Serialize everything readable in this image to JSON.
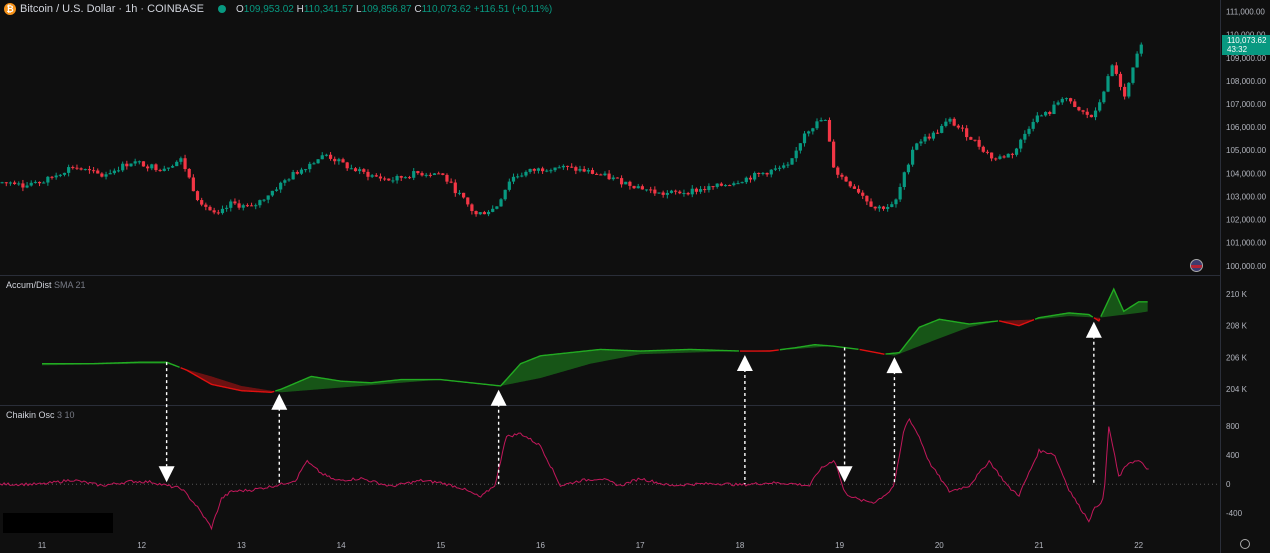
{
  "legend": {
    "symbol": "Bitcoin / U.S. Dollar · 1h · COINBASE",
    "open_label": "O",
    "open": "109,953.02",
    "high_label": "H",
    "high": "110,341.57",
    "low_label": "L",
    "low": "109,856.87",
    "close_label": "C",
    "close": "110,073.62",
    "change": "+116.51 (+0.11%)"
  },
  "last_price": {
    "price": "110,073.62",
    "countdown": "43:32"
  },
  "indicators": {
    "ad_name": "Accum/Dist",
    "ad_params": "SMA 21",
    "chaikin_name": "Chaikin Osc",
    "chaikin_params": "3 10"
  },
  "colors": {
    "up": "#089981",
    "down": "#f23645",
    "ad_line_up": "#22ab22",
    "ad_line_down": "#e01010",
    "chaikin": "#c2185b",
    "arrow": "#ffffff"
  },
  "chart_data": [
    {
      "type": "candlestick",
      "title": "Bitcoin / U.S. Dollar · 1h · COINBASE",
      "x_ticks": [
        "11",
        "12",
        "13",
        "14",
        "15",
        "16",
        "17",
        "18",
        "19",
        "20",
        "21",
        "22"
      ],
      "y_ticks": [
        "100,000.00",
        "101,000.00",
        "102,000.00",
        "103,000.00",
        "104,000.00",
        "105,000.00",
        "106,000.00",
        "107,000.00",
        "108,000.00",
        "109,000.00",
        "110,000.00",
        "111,000.00"
      ],
      "ylim": [
        99600,
        111500
      ],
      "close_path": [
        [
          11.0,
          103600
        ],
        [
          11.3,
          104300
        ],
        [
          11.6,
          103900
        ],
        [
          11.9,
          104500
        ],
        [
          12.2,
          104200
        ],
        [
          12.4,
          104600
        ],
        [
          12.55,
          103000
        ],
        [
          12.75,
          102100
        ],
        [
          12.9,
          102700
        ],
        [
          13.1,
          102500
        ],
        [
          13.3,
          103200
        ],
        [
          13.5,
          103900
        ],
        [
          13.75,
          104600
        ],
        [
          13.85,
          104800
        ],
        [
          14.1,
          104200
        ],
        [
          14.3,
          103900
        ],
        [
          14.5,
          103700
        ],
        [
          14.75,
          104000
        ],
        [
          15.0,
          104000
        ],
        [
          15.2,
          103000
        ],
        [
          15.35,
          102200
        ],
        [
          15.55,
          102500
        ],
        [
          15.7,
          103800
        ],
        [
          15.9,
          104100
        ],
        [
          16.15,
          104300
        ],
        [
          16.45,
          104100
        ],
        [
          16.7,
          103800
        ],
        [
          17.0,
          103400
        ],
        [
          17.2,
          103100
        ],
        [
          17.45,
          103200
        ],
        [
          17.75,
          103400
        ],
        [
          18.0,
          103700
        ],
        [
          18.3,
          104100
        ],
        [
          18.5,
          104300
        ],
        [
          18.65,
          105800
        ],
        [
          18.85,
          106400
        ],
        [
          18.95,
          104100
        ],
        [
          19.2,
          103200
        ],
        [
          19.35,
          102500
        ],
        [
          19.55,
          102600
        ],
        [
          19.75,
          105300
        ],
        [
          19.95,
          105700
        ],
        [
          20.1,
          106300
        ],
        [
          20.3,
          105600
        ],
        [
          20.55,
          104600
        ],
        [
          20.75,
          104900
        ],
        [
          20.95,
          106400
        ],
        [
          21.1,
          106600
        ],
        [
          21.25,
          107400
        ],
        [
          21.35,
          106800
        ],
        [
          21.55,
          106400
        ],
        [
          21.75,
          108800
        ],
        [
          21.85,
          107100
        ],
        [
          22.0,
          109300
        ],
        [
          22.05,
          110073
        ]
      ]
    },
    {
      "type": "line",
      "name": "Accum/Dist",
      "params": "SMA 21",
      "unit": "K",
      "y_ticks": [
        "204 K",
        "206 K",
        "208 K",
        "210 K"
      ],
      "ylim": [
        203000,
        211000
      ],
      "series": [
        {
          "name": "Accum/Dist",
          "x": [
            11.0,
            11.5,
            12.0,
            12.25,
            12.45,
            12.7,
            13.0,
            13.3,
            13.4,
            13.7,
            14.0,
            14.3,
            14.6,
            15.0,
            15.3,
            15.6,
            15.8,
            16.0,
            16.3,
            16.6,
            17.0,
            17.5,
            18.0,
            18.3,
            18.55,
            18.75,
            18.95,
            19.2,
            19.45,
            19.6,
            19.8,
            20.0,
            20.3,
            20.6,
            20.8,
            21.0,
            21.3,
            21.5,
            21.6,
            21.75,
            21.85,
            22.0,
            22.1
          ],
          "values": [
            205.6,
            205.6,
            205.7,
            205.7,
            205.2,
            204.3,
            203.9,
            203.8,
            204.0,
            204.8,
            204.5,
            204.4,
            204.6,
            204.6,
            204.4,
            204.2,
            205.6,
            206.1,
            206.3,
            206.5,
            206.4,
            206.5,
            206.4,
            206.4,
            206.6,
            206.8,
            206.7,
            206.5,
            206.2,
            206.3,
            207.9,
            208.4,
            208.1,
            208.3,
            208.0,
            208.5,
            208.8,
            208.7,
            208.3,
            210.3,
            208.9,
            209.5,
            209.5
          ]
        },
        {
          "name": "SMA 21",
          "x": [
            11.0,
            12.0,
            12.25,
            12.7,
            13.0,
            13.4,
            14.0,
            15.0,
            15.6,
            16.0,
            16.5,
            17.0,
            18.0,
            18.5,
            18.9,
            19.2,
            19.55,
            20.0,
            20.3,
            20.6,
            21.0,
            21.3,
            21.6,
            22.0,
            22.1
          ],
          "values": [
            205.5,
            205.6,
            205.6,
            204.8,
            204.2,
            203.8,
            204.1,
            204.6,
            204.2,
            204.7,
            205.6,
            206.2,
            206.4,
            206.5,
            206.7,
            206.5,
            206.1,
            207.2,
            207.9,
            208.3,
            208.4,
            208.6,
            208.5,
            208.8,
            208.9
          ]
        }
      ]
    },
    {
      "type": "line",
      "name": "Chaikin Osc",
      "params": "3 10",
      "y_ticks": [
        "-400",
        "0",
        "400",
        "800"
      ],
      "ylim": [
        -700,
        1050
      ],
      "series": [
        {
          "name": "Chaikin Osc",
          "x": [
            11.0,
            11.3,
            11.6,
            11.9,
            12.1,
            12.25,
            12.4,
            12.55,
            12.7,
            12.8,
            12.9,
            13.1,
            13.3,
            13.4,
            13.55,
            13.65,
            13.8,
            13.95,
            14.2,
            14.5,
            14.8,
            15.0,
            15.2,
            15.4,
            15.55,
            15.65,
            15.8,
            16.0,
            16.2,
            16.4,
            16.6,
            16.8,
            17.0,
            17.3,
            17.5,
            17.8,
            18.0,
            18.3,
            18.5,
            18.7,
            18.8,
            18.95,
            19.05,
            19.2,
            19.35,
            19.5,
            19.55,
            19.65,
            19.7,
            19.8,
            19.9,
            20.1,
            20.3,
            20.5,
            20.7,
            20.8,
            21.0,
            21.15,
            21.3,
            21.4,
            21.5,
            21.55,
            21.65,
            21.7,
            21.8,
            21.9,
            22.0,
            22.1
          ],
          "values": [
            0,
            60,
            -20,
            40,
            30,
            -20,
            -60,
            -300,
            -600,
            -200,
            -100,
            -80,
            -30,
            0,
            60,
            320,
            150,
            50,
            80,
            -30,
            50,
            20,
            -50,
            -180,
            0,
            650,
            700,
            530,
            -20,
            50,
            80,
            -20,
            80,
            -20,
            0,
            10,
            -10,
            20,
            10,
            -20,
            200,
            340,
            -120,
            -220,
            -250,
            -100,
            0,
            780,
            900,
            650,
            300,
            -100,
            -20,
            320,
            -50,
            -150,
            460,
            420,
            -70,
            -300,
            -500,
            -350,
            -200,
            800,
            100,
            300,
            320,
            200
          ]
        }
      ]
    }
  ],
  "annotations": {
    "signals": [
      {
        "x": 12.25,
        "direction": "down"
      },
      {
        "x": 13.38,
        "direction": "up"
      },
      {
        "x": 15.58,
        "direction": "up"
      },
      {
        "x": 18.05,
        "direction": "up"
      },
      {
        "x": 19.05,
        "direction": "down"
      },
      {
        "x": 19.55,
        "direction": "up"
      },
      {
        "x": 21.55,
        "direction": "up"
      }
    ]
  }
}
